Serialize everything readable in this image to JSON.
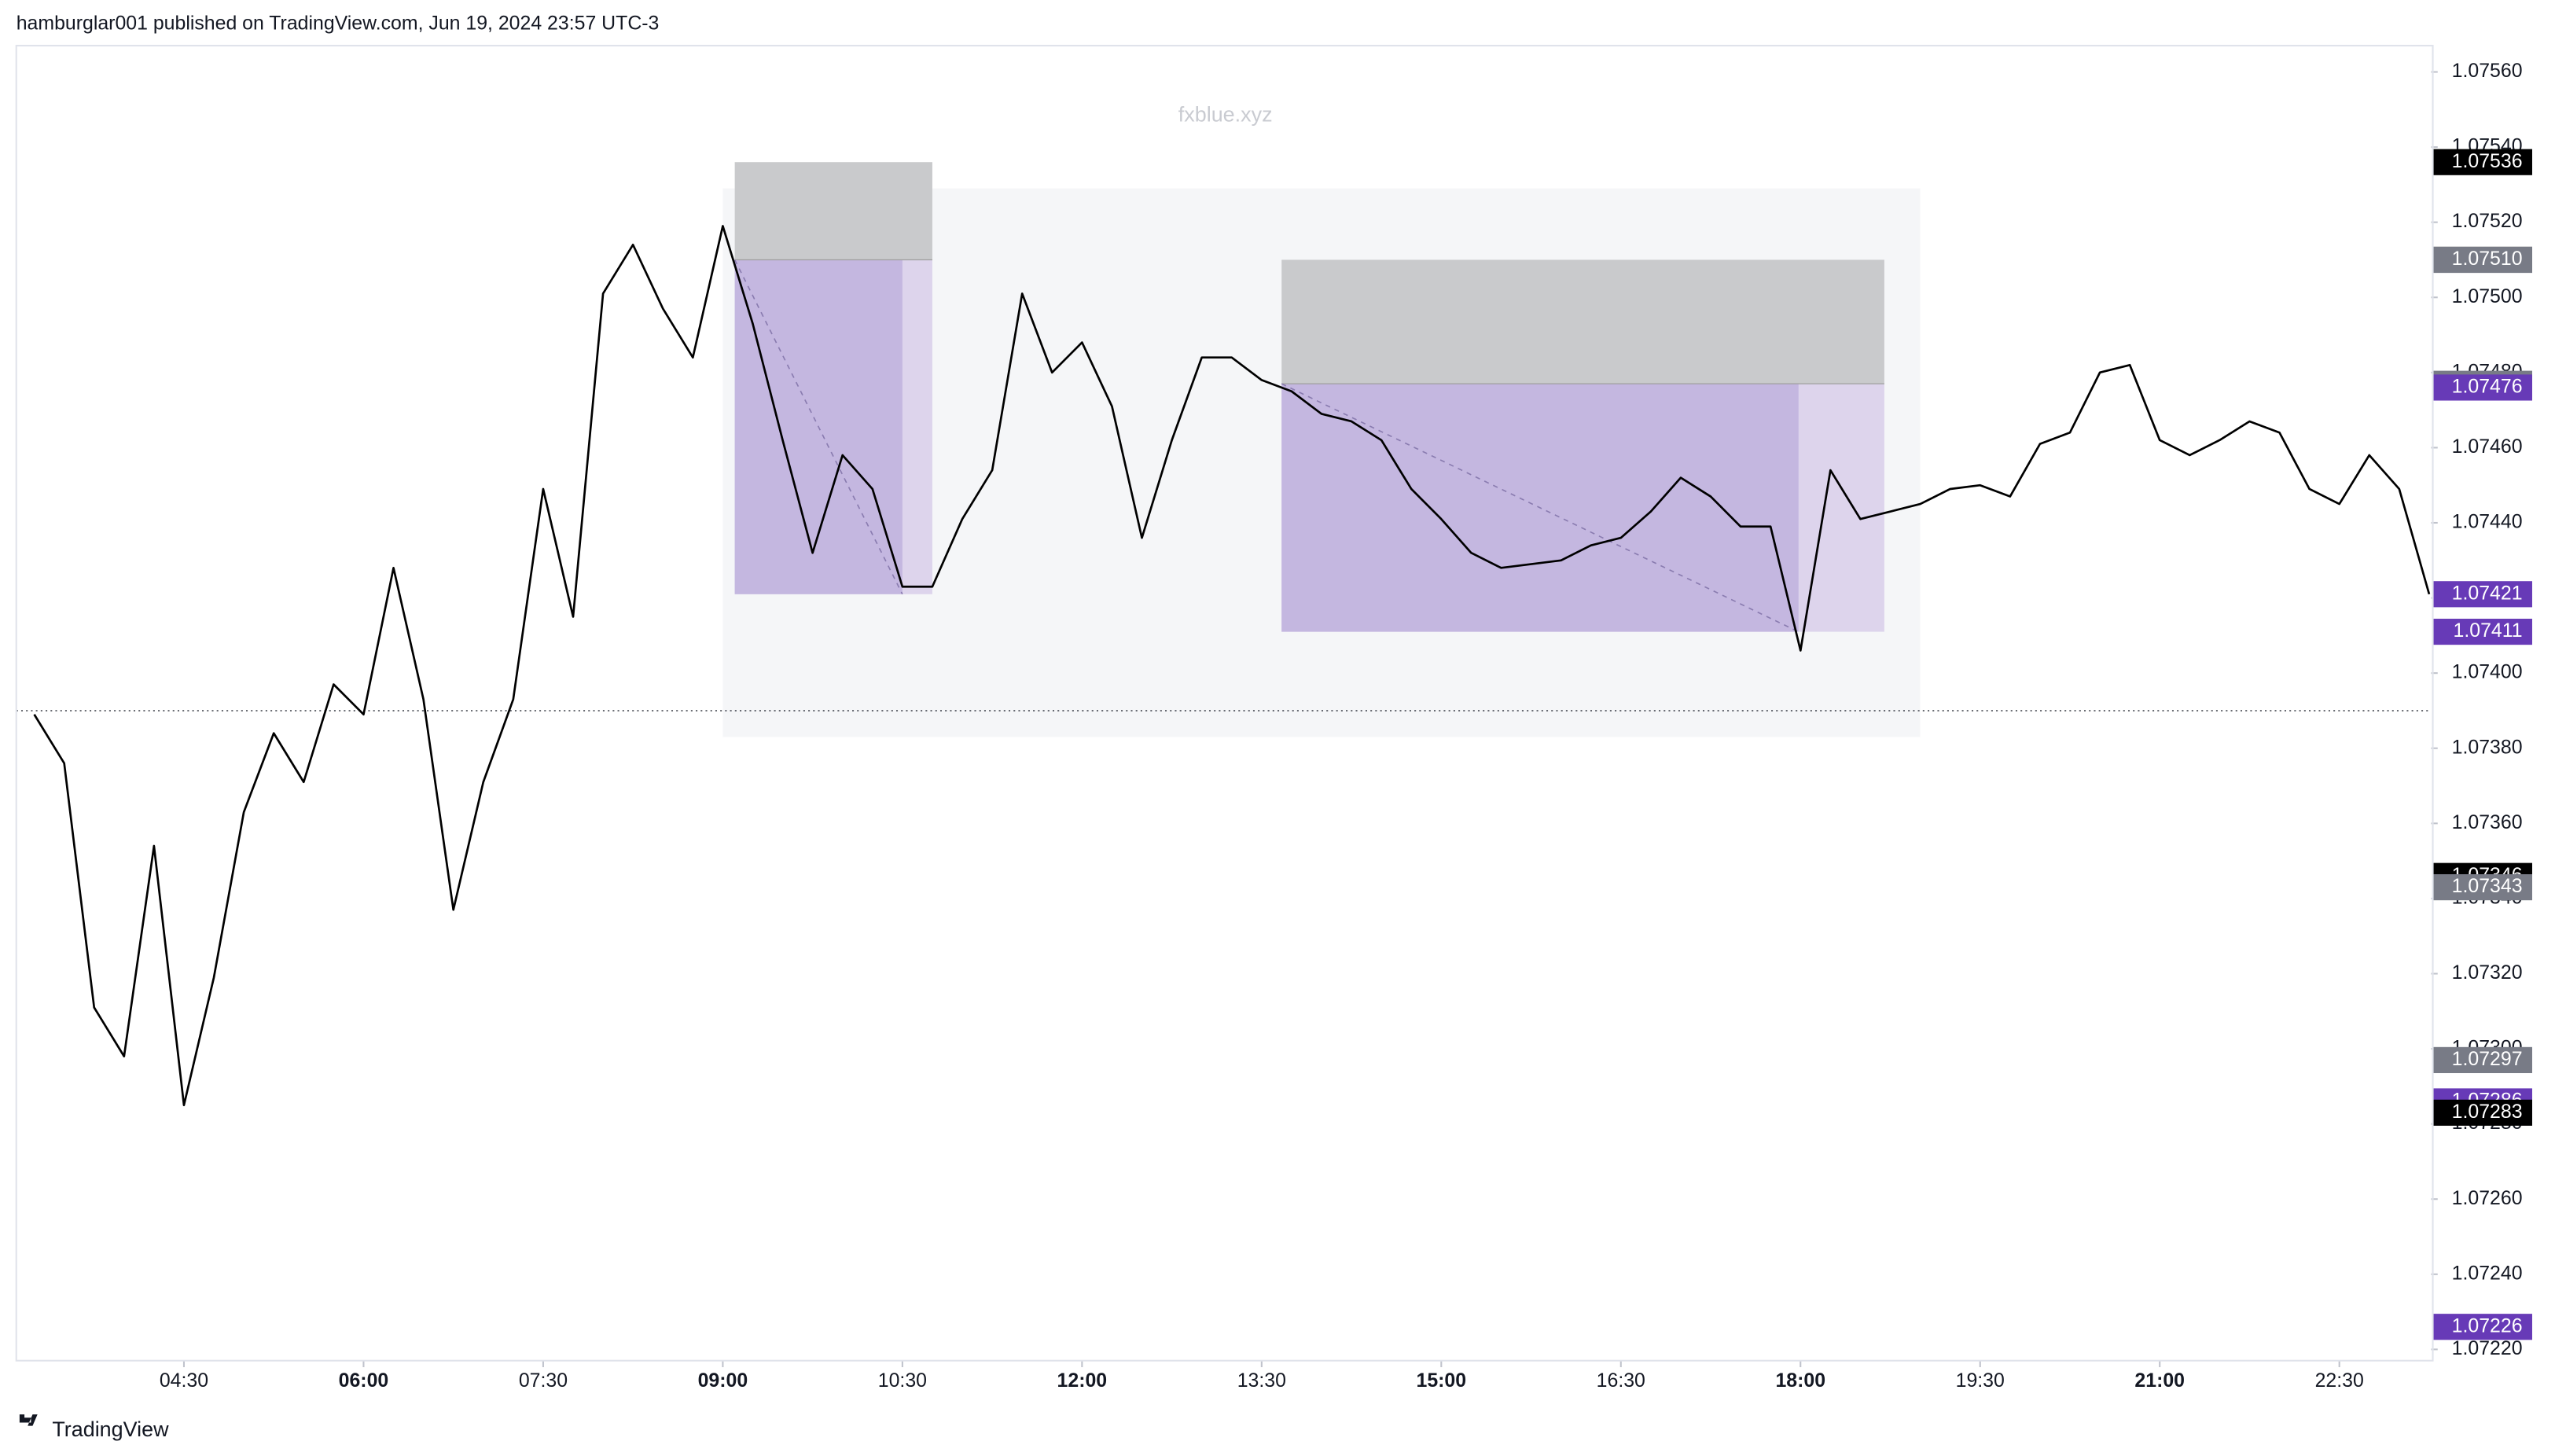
{
  "header": "hamburglar001 published on TradingView.com, Jun 19, 2024 23:57 UTC-3",
  "footer": "TradingView",
  "chart_data": {
    "type": "line",
    "watermark": "fxblue.xyz",
    "x": [
      195,
      210,
      225,
      240,
      255,
      270,
      285,
      300,
      315,
      330,
      345,
      360,
      375,
      390,
      405,
      420,
      435,
      450,
      465,
      480,
      495,
      510,
      525,
      540,
      555,
      570,
      585,
      600,
      615,
      630,
      645,
      660,
      675,
      690,
      705,
      720,
      735,
      750,
      765,
      780,
      795,
      810,
      825,
      840,
      855,
      870,
      885,
      900,
      915,
      930,
      945,
      960,
      975,
      990,
      1005,
      1020,
      1035,
      1050,
      1065,
      1080,
      1095,
      1110,
      1125,
      1140,
      1155,
      1170,
      1185,
      1200,
      1215,
      1230,
      1245,
      1260,
      1275,
      1290,
      1305,
      1320,
      1335,
      1350,
      1365,
      1380,
      1395
    ],
    "series": [
      {
        "name": "EURUSD",
        "color": "#000000",
        "values": [
          1.07389,
          1.07376,
          1.07311,
          1.07298,
          1.07354,
          1.07285,
          1.07319,
          1.07363,
          1.07384,
          1.07371,
          1.07397,
          1.07389,
          1.07428,
          1.07393,
          1.07337,
          1.07371,
          1.07393,
          1.07449,
          1.07415,
          1.07501,
          1.07514,
          1.07497,
          1.07484,
          1.07519,
          1.07493,
          1.07462,
          1.07432,
          1.07458,
          1.07449,
          1.07423,
          1.07423,
          1.07441,
          1.07454,
          1.07501,
          1.0748,
          1.07488,
          1.07471,
          1.07436,
          1.07462,
          1.07484,
          1.07484,
          1.07478,
          1.07475,
          1.07469,
          1.07467,
          1.07462,
          1.07449,
          1.07441,
          1.07432,
          1.07428,
          1.07429,
          1.0743,
          1.07434,
          1.07436,
          1.07443,
          1.07452,
          1.07447,
          1.07439,
          1.07439,
          1.07406,
          1.07454,
          1.07441,
          1.07443,
          1.07445,
          1.07449,
          1.0745,
          1.07447,
          1.07461,
          1.07464,
          1.0748,
          1.07482,
          1.07462,
          1.07458,
          1.07462,
          1.07467,
          1.07464,
          1.07449,
          1.07445,
          1.07458,
          1.07449,
          1.07421
        ]
      }
    ],
    "xlim": [
      186,
      1396
    ],
    "ylim": [
      1.07217,
      1.07567
    ],
    "xticks": [
      {
        "value": 270,
        "label": "04:30"
      },
      {
        "value": 360,
        "label": "06:00"
      },
      {
        "value": 450,
        "label": "07:30"
      },
      {
        "value": 540,
        "label": "09:00"
      },
      {
        "value": 630,
        "label": "10:30"
      },
      {
        "value": 720,
        "label": "12:00"
      },
      {
        "value": 810,
        "label": "13:30"
      },
      {
        "value": 900,
        "label": "15:00"
      },
      {
        "value": 990,
        "label": "16:30"
      },
      {
        "value": 1080,
        "label": "18:00"
      },
      {
        "value": 1170,
        "label": "19:30"
      },
      {
        "value": 1260,
        "label": "21:00"
      },
      {
        "value": 1350,
        "label": "22:30"
      }
    ],
    "yticks": [
      {
        "value": 1.0722,
        "label": "1.07220"
      },
      {
        "value": 1.0724,
        "label": "1.07240"
      },
      {
        "value": 1.0726,
        "label": "1.07260"
      },
      {
        "value": 1.0728,
        "label": "1.07280"
      },
      {
        "value": 1.073,
        "label": "1.07300"
      },
      {
        "value": 1.0732,
        "label": "1.07320"
      },
      {
        "value": 1.0734,
        "label": "1.07340"
      },
      {
        "value": 1.0736,
        "label": "1.07360"
      },
      {
        "value": 1.0738,
        "label": "1.07380"
      },
      {
        "value": 1.074,
        "label": "1.07400"
      },
      {
        "value": 1.0742,
        "label": "1.07420"
      },
      {
        "value": 1.0744,
        "label": "1.07440"
      },
      {
        "value": 1.0746,
        "label": "1.07460"
      },
      {
        "value": 1.0748,
        "label": "1.07480"
      },
      {
        "value": 1.075,
        "label": "1.07500"
      },
      {
        "value": 1.0752,
        "label": "1.07520"
      },
      {
        "value": 1.0754,
        "label": "1.07540"
      },
      {
        "value": 1.0756,
        "label": "1.07560"
      }
    ],
    "price_labels": [
      {
        "value": 1.07536,
        "label": "1.07536",
        "color": "#000000"
      },
      {
        "value": 1.0751,
        "label": "1.07510",
        "color": "#000000"
      },
      {
        "value": 1.0751,
        "label": "1.07510",
        "color": "#787b86"
      },
      {
        "value": 1.07477,
        "label": "1.07477",
        "color": "#787b86"
      },
      {
        "value": 1.07476,
        "label": "1.07476",
        "color": "#673ab7"
      },
      {
        "value": 1.07421,
        "label": "1.07421",
        "color": "#673ab7"
      },
      {
        "value": 1.07411,
        "label": "1.07411",
        "color": "#673ab7"
      },
      {
        "value": 1.07346,
        "label": "1.07346",
        "color": "#000000"
      },
      {
        "value": 1.07343,
        "label": "1.07343",
        "color": "#787b86"
      },
      {
        "value": 1.07297,
        "label": "1.07297",
        "color": "#787b86"
      },
      {
        "value": 1.07286,
        "label": "1.07286",
        "color": "#673ab7"
      },
      {
        "value": 1.07283,
        "label": "1.07283",
        "color": "#000000"
      },
      {
        "value": 1.07226,
        "label": "1.07226",
        "color": "#673ab7"
      }
    ],
    "highlight": {
      "start": 540,
      "end": 1140,
      "top": 1.07529,
      "bottom": 1.07383,
      "color": "#f5f6f8"
    },
    "hline": 1.0739,
    "positions": [
      {
        "start": 546,
        "fill_end": 630,
        "end": 645,
        "stop": 1.07536,
        "entry": 1.0751,
        "target": 1.07421
      },
      {
        "start": 820,
        "fill_end": 1079,
        "end": 1122,
        "stop": 1.0751,
        "entry": 1.07477,
        "target": 1.07411
      }
    ]
  }
}
